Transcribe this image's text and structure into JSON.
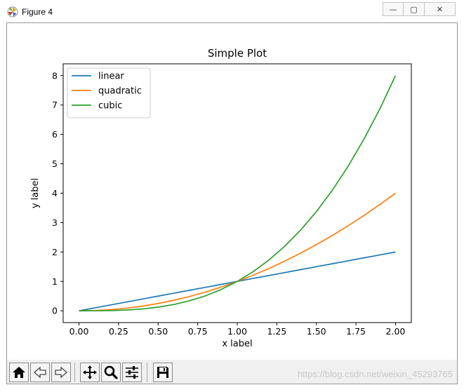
{
  "window": {
    "title": "Figure 4",
    "minimize_glyph": "—",
    "maximize_glyph": "▢",
    "close_glyph": "✕"
  },
  "toolbar": {
    "buttons": [
      "home-icon",
      "back-icon",
      "forward-icon",
      "pan-icon",
      "zoom-icon",
      "configure-subplots-icon",
      "save-icon"
    ]
  },
  "watermark": "https://blog.csdn.net/weixin_45293765",
  "chart_data": {
    "type": "line",
    "title": "Simple Plot",
    "xlabel": "x label",
    "ylabel": "y label",
    "xlim": [
      -0.1,
      2.1
    ],
    "ylim": [
      -0.4,
      8.4
    ],
    "xticks": [
      "0.00",
      "0.25",
      "0.50",
      "0.75",
      "1.00",
      "1.25",
      "1.50",
      "1.75",
      "2.00"
    ],
    "yticks": [
      "0",
      "1",
      "2",
      "3",
      "4",
      "5",
      "6",
      "7",
      "8"
    ],
    "legend": {
      "placement": "upper-left"
    },
    "x": [
      0.0,
      0.1,
      0.2,
      0.3,
      0.4,
      0.5,
      0.6,
      0.7,
      0.8,
      0.9,
      1.0,
      1.1,
      1.2,
      1.3,
      1.4,
      1.5,
      1.6,
      1.7,
      1.8,
      1.9,
      2.0
    ],
    "series": [
      {
        "name": "linear",
        "color": "#1f77b4",
        "values": [
          0.0,
          0.1,
          0.2,
          0.3,
          0.4,
          0.5,
          0.6,
          0.7,
          0.8,
          0.9,
          1.0,
          1.1,
          1.2,
          1.3,
          1.4,
          1.5,
          1.6,
          1.7,
          1.8,
          1.9,
          2.0
        ]
      },
      {
        "name": "quadratic",
        "color": "#ff7f0e",
        "values": [
          0.0,
          0.01,
          0.04,
          0.09,
          0.16,
          0.25,
          0.36,
          0.49,
          0.64,
          0.81,
          1.0,
          1.21,
          1.44,
          1.69,
          1.96,
          2.25,
          2.56,
          2.89,
          3.24,
          3.61,
          4.0
        ]
      },
      {
        "name": "cubic",
        "color": "#2ca02c",
        "values": [
          0.0,
          0.001,
          0.008,
          0.027,
          0.064,
          0.125,
          0.216,
          0.343,
          0.512,
          0.729,
          1.0,
          1.331,
          1.728,
          2.197,
          2.744,
          3.375,
          4.096,
          4.913,
          5.832,
          6.859,
          8.0
        ]
      }
    ]
  }
}
